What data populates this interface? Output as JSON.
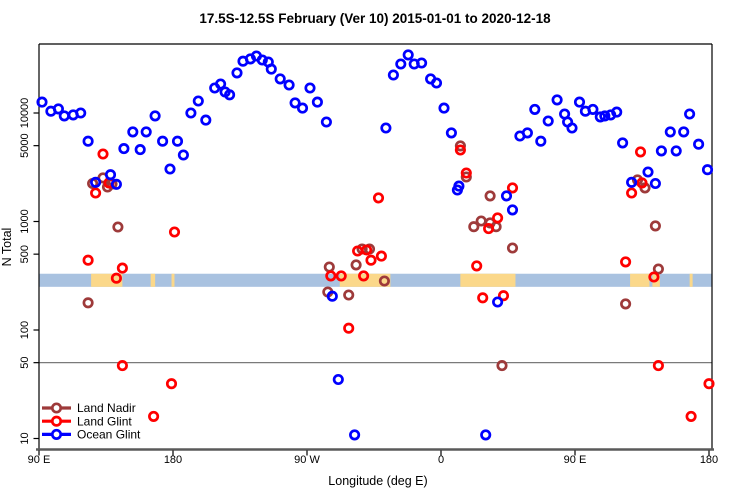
{
  "title": "17.5S-12.5S February (Ver 10)   2015-01-01 to 2020-12-18",
  "chart_data": {
    "type": "scatter",
    "title": "17.5S-12.5S February (Ver 10)   2015-01-01 to 2020-12-18",
    "xlabel": "Longitude (deg E)",
    "ylabel": "N Total",
    "x_axis": {
      "note": "longitude axis starts at 90E and wraps eastward through 180, 90W, 0, 90E to 180",
      "domain_deg": [
        90,
        540
      ],
      "ticks": [
        {
          "pos": 90,
          "label": "90 E"
        },
        {
          "pos": 180,
          "label": "180"
        },
        {
          "pos": 270,
          "label": "90 W"
        },
        {
          "pos": 360,
          "label": "0"
        },
        {
          "pos": 450,
          "label": "90 E"
        },
        {
          "pos": 540,
          "label": "180"
        }
      ]
    },
    "y_axis": {
      "scale": "log10",
      "ticks": [
        10,
        50,
        100,
        500,
        1000,
        5000,
        10000
      ],
      "domain": [
        8,
        42000
      ]
    },
    "reference_line": {
      "value": 50,
      "color": "#7a7a7a"
    },
    "highlight_band": {
      "value_range": [
        250,
        330
      ],
      "ocean_color": "#a9c2e0",
      "land_color": "#fbd88a",
      "land_segments_deg": [
        [
          125,
          146
        ],
        [
          165,
          168
        ],
        [
          179,
          181
        ],
        [
          292,
          326
        ],
        [
          373,
          410
        ],
        [
          487,
          500
        ],
        [
          502,
          507
        ],
        [
          527,
          529
        ]
      ]
    },
    "series": [
      {
        "name": "Land Nadir",
        "color": "#9e3a3a",
        "points": [
          [
            126,
            2240
          ],
          [
            133,
            2520
          ],
          [
            136,
            2080
          ],
          [
            139,
            2220
          ],
          [
            143,
            890
          ],
          [
            123,
            178
          ],
          [
            307,
            558
          ],
          [
            312,
            558
          ],
          [
            303,
            398
          ],
          [
            285,
            381
          ],
          [
            322,
            283
          ],
          [
            284,
            224
          ],
          [
            298,
            210
          ],
          [
            382,
            895
          ],
          [
            387,
            1010
          ],
          [
            393,
            970
          ],
          [
            397,
            895
          ],
          [
            393,
            1720
          ],
          [
            373,
            4970
          ],
          [
            377,
            2570
          ],
          [
            408,
            570
          ],
          [
            484,
            174
          ],
          [
            506,
            365
          ],
          [
            492,
            2420
          ],
          [
            497,
            2040
          ],
          [
            504,
            910
          ],
          [
            401,
            47
          ]
        ]
      },
      {
        "name": "Land Glint",
        "color": "#ff0000",
        "points": [
          [
            133,
            4190
          ],
          [
            137,
            2270
          ],
          [
            128,
            1830
          ],
          [
            123,
            440
          ],
          [
            146,
            372
          ],
          [
            142,
            300
          ],
          [
            181,
            800
          ],
          [
            146,
            47
          ],
          [
            179,
            32
          ],
          [
            167,
            16
          ],
          [
            318,
            1650
          ],
          [
            304,
            535
          ],
          [
            310,
            546
          ],
          [
            320,
            480
          ],
          [
            313,
            440
          ],
          [
            308,
            315
          ],
          [
            286,
            315
          ],
          [
            293,
            315
          ],
          [
            298,
            104
          ],
          [
            388,
            198
          ],
          [
            402,
            207
          ],
          [
            384,
            390
          ],
          [
            392,
            860
          ],
          [
            398,
            1080
          ],
          [
            408,
            2040
          ],
          [
            373,
            4560
          ],
          [
            377,
            2800
          ],
          [
            494,
            4380
          ],
          [
            495,
            2270
          ],
          [
            488,
            1830
          ],
          [
            484,
            424
          ],
          [
            503,
            308
          ],
          [
            506,
            47
          ],
          [
            540,
            32
          ],
          [
            528,
            16
          ]
        ]
      },
      {
        "name": "Ocean Glint",
        "color": "#0000ff",
        "points": [
          [
            92,
            12600
          ],
          [
            98,
            10400
          ],
          [
            103,
            10900
          ],
          [
            107,
            9400
          ],
          [
            113,
            9600
          ],
          [
            118,
            10000
          ],
          [
            123,
            5500
          ],
          [
            128,
            2300
          ],
          [
            138,
            2700
          ],
          [
            142,
            2200
          ],
          [
            147,
            4700
          ],
          [
            153,
            6700
          ],
          [
            158,
            4600
          ],
          [
            162,
            6700
          ],
          [
            168,
            9400
          ],
          [
            173,
            5500
          ],
          [
            178,
            3050
          ],
          [
            183,
            5500
          ],
          [
            187,
            4100
          ],
          [
            192,
            10000
          ],
          [
            197,
            12900
          ],
          [
            202,
            8600
          ],
          [
            208,
            17000
          ],
          [
            212,
            18500
          ],
          [
            215,
            15600
          ],
          [
            218,
            14700
          ],
          [
            223,
            23400
          ],
          [
            227,
            30000
          ],
          [
            232,
            31500
          ],
          [
            236,
            33500
          ],
          [
            240,
            30800
          ],
          [
            244,
            29500
          ],
          [
            246,
            25400
          ],
          [
            252,
            20600
          ],
          [
            258,
            18100
          ],
          [
            262,
            12400
          ],
          [
            267,
            11100
          ],
          [
            272,
            17000
          ],
          [
            277,
            12600
          ],
          [
            283,
            8260
          ],
          [
            323,
            7280
          ],
          [
            328,
            22400
          ],
          [
            333,
            28300
          ],
          [
            338,
            34300
          ],
          [
            342,
            28300
          ],
          [
            347,
            28900
          ],
          [
            353,
            20600
          ],
          [
            357,
            18900
          ],
          [
            362,
            11100
          ],
          [
            367,
            6550
          ],
          [
            371,
            1950
          ],
          [
            372,
            2120
          ],
          [
            404,
            1720
          ],
          [
            408,
            1280
          ],
          [
            413,
            6140
          ],
          [
            418,
            6550
          ],
          [
            423,
            10800
          ],
          [
            427,
            5500
          ],
          [
            432,
            8430
          ],
          [
            438,
            13200
          ],
          [
            443,
            9790
          ],
          [
            445,
            8260
          ],
          [
            448,
            7280
          ],
          [
            453,
            12600
          ],
          [
            457,
            10400
          ],
          [
            462,
            10800
          ],
          [
            467,
            9200
          ],
          [
            470,
            9400
          ],
          [
            474,
            9600
          ],
          [
            478,
            10200
          ],
          [
            482,
            5300
          ],
          [
            488,
            2300
          ],
          [
            499,
            2860
          ],
          [
            504,
            2240
          ],
          [
            508,
            4470
          ],
          [
            514,
            6700
          ],
          [
            518,
            4470
          ],
          [
            523,
            6700
          ],
          [
            527,
            9790
          ],
          [
            533,
            5160
          ],
          [
            539,
            3000
          ],
          [
            287,
            205
          ],
          [
            398,
            181
          ],
          [
            291,
            35
          ],
          [
            302,
            10.8
          ],
          [
            390,
            10.8
          ]
        ]
      }
    ],
    "legend": {
      "position": "bottom-left",
      "entries": [
        {
          "label": "Land Nadir",
          "color": "#9e3a3a"
        },
        {
          "label": "Land Glint",
          "color": "#ff0000"
        },
        {
          "label": "Ocean Glint",
          "color": "#0000ff"
        }
      ]
    }
  }
}
